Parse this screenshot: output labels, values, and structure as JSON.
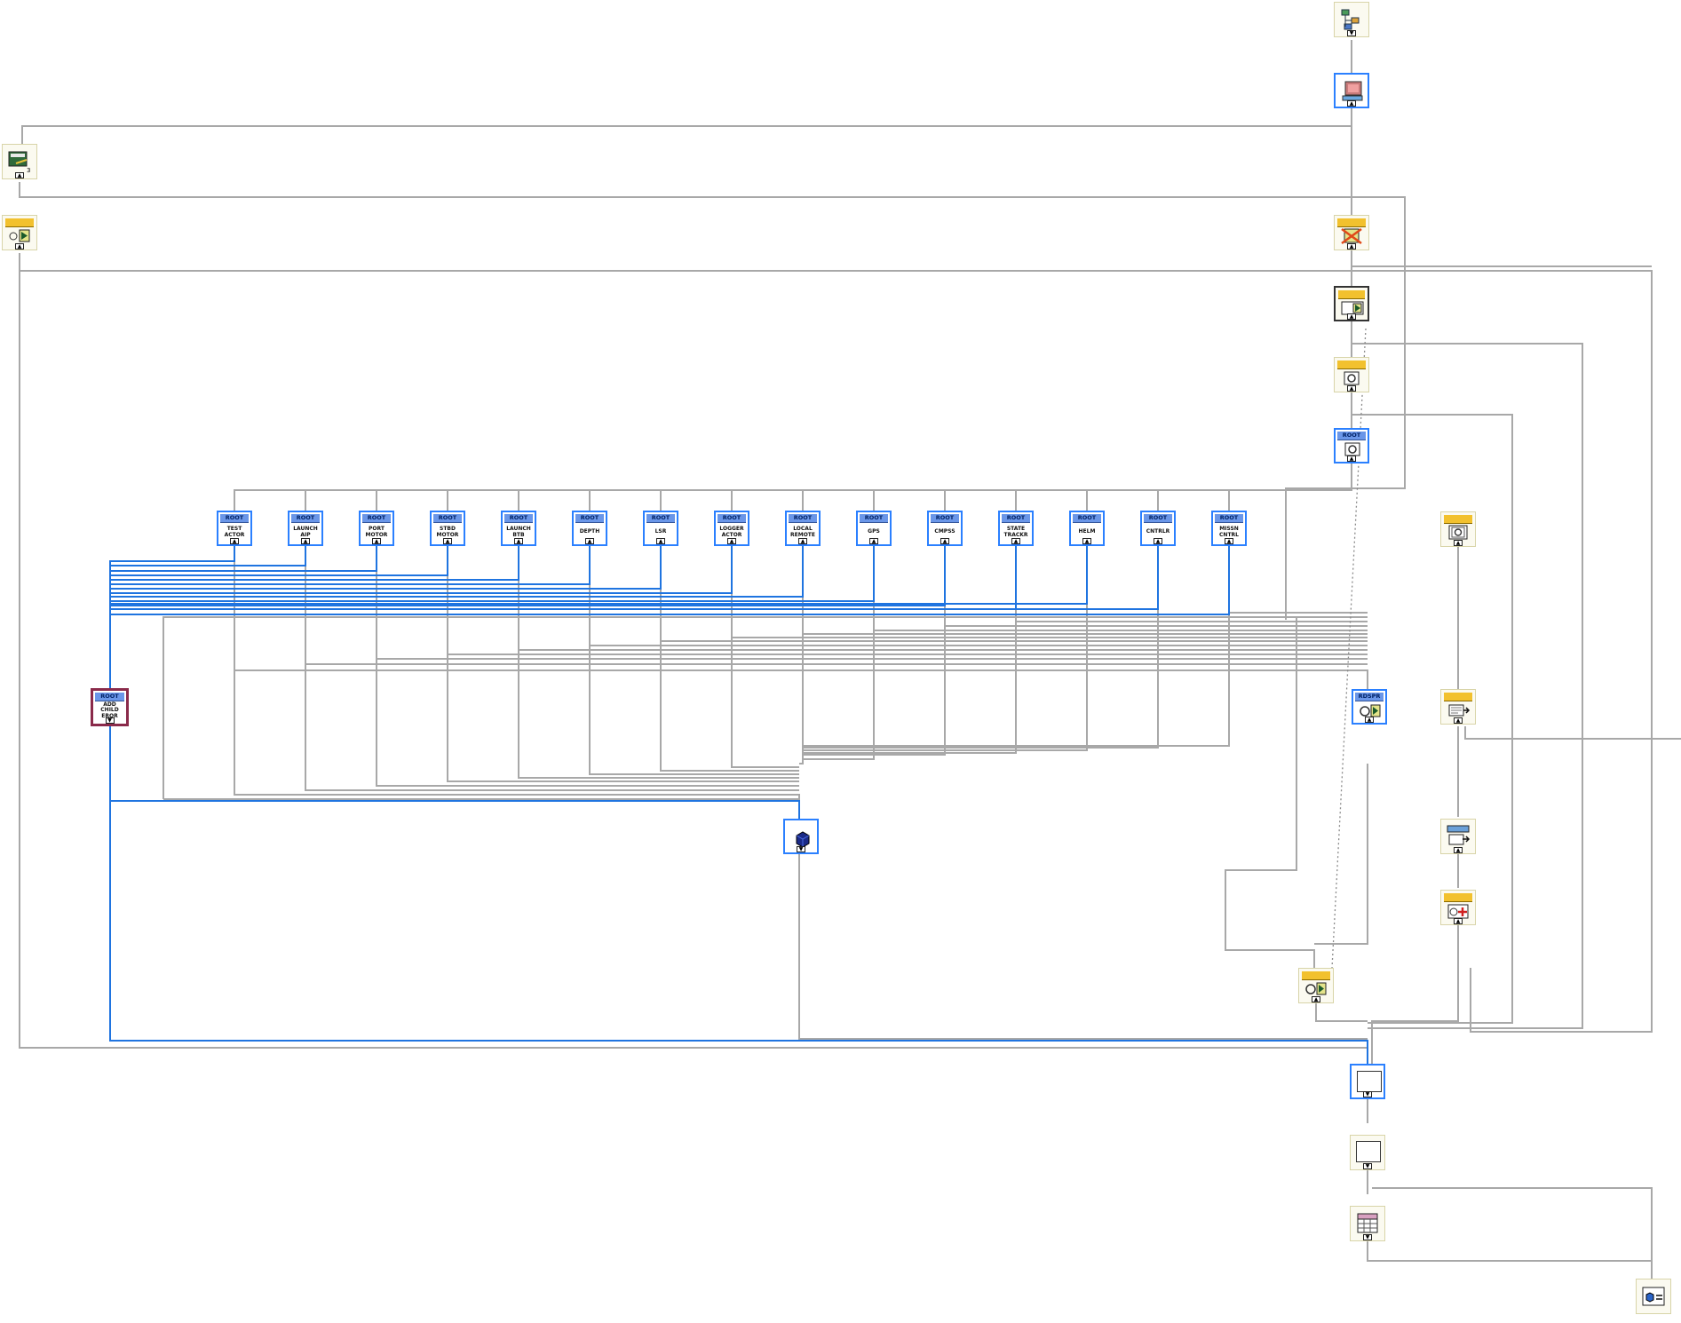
{
  "diagram": {
    "top_nodes": [
      {
        "id": "app-hierarchy",
        "icon": "hierarchy-icon"
      },
      {
        "id": "host-computer",
        "icon": "computer-icon"
      }
    ],
    "root_actors": [
      {
        "header": "ROOT",
        "label": "TEST\nACTOR"
      },
      {
        "header": "ROOT",
        "label": "LAUNCH\nAIP"
      },
      {
        "header": "ROOT",
        "label": "PORT\nMOTOR"
      },
      {
        "header": "ROOT",
        "label": "STBD\nMOTOR"
      },
      {
        "header": "ROOT",
        "label": "LAUNCH\nBTB"
      },
      {
        "header": "ROOT",
        "label": "DEPTH"
      },
      {
        "header": "ROOT",
        "label": "LSR"
      },
      {
        "header": "ROOT",
        "label": "LOGGER\nACTOR"
      },
      {
        "header": "ROOT",
        "label": "LOCAL\nREMOTE"
      },
      {
        "header": "ROOT",
        "label": "GPS"
      },
      {
        "header": "ROOT",
        "label": "CMPSS"
      },
      {
        "header": "ROOT",
        "label": "STATE\nTRACKR"
      },
      {
        "header": "ROOT",
        "label": "HELM"
      },
      {
        "header": "ROOT",
        "label": "CNTRLR"
      },
      {
        "header": "ROOT",
        "label": "MISSN\nCNTRL"
      }
    ],
    "root_config": {
      "header": "ROOT"
    },
    "add_child_error": {
      "header": "ROOT",
      "label": "ADD\nCHILD\nEROR"
    },
    "dispatcher": {
      "header": "RDSPR"
    },
    "terminal_up": "▲",
    "terminal_down": "▼",
    "colors": {
      "wire_gray": "#a8a8a8",
      "wire_blue": "#1f74e0",
      "vi_border": "#2b80ff",
      "root_header": "#6a96e8",
      "config_header": "#f2c12e",
      "error_border": "#8a2a4a"
    }
  }
}
